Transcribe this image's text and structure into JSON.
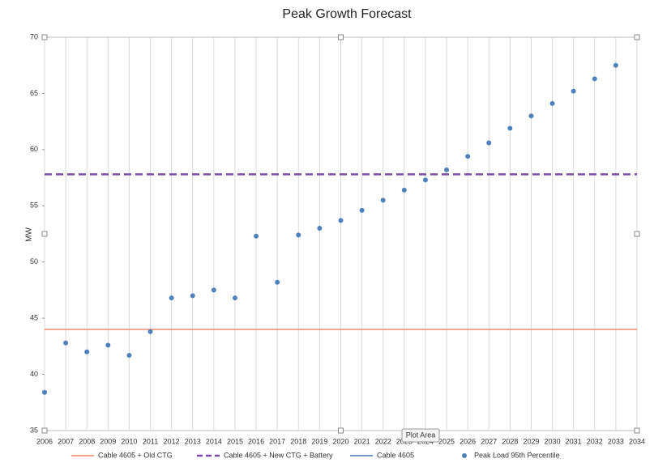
{
  "chart_data": {
    "type": "scatter",
    "title": "Peak Growth Forecast",
    "ylabel": "MW",
    "xlim": [
      2006,
      2034
    ],
    "xticks": [
      2006,
      2007,
      2008,
      2009,
      2010,
      2011,
      2012,
      2013,
      2014,
      2015,
      2016,
      2017,
      2018,
      2019,
      2020,
      2021,
      2022,
      2023,
      2024,
      2025,
      2026,
      2027,
      2028,
      2029,
      2030,
      2031,
      2032,
      2033,
      2034
    ],
    "ylim": [
      35,
      70
    ],
    "yticks": [
      35,
      40,
      45,
      50,
      55,
      60,
      65,
      70
    ],
    "grid": true,
    "legend": "bottom",
    "tooltip": "Plot Area",
    "series": [
      {
        "name": "Cable 4605 + Old CTG",
        "type": "line",
        "color": "#f4876b",
        "dash": false,
        "x": [
          2006,
          2034
        ],
        "values": [
          44.0,
          44.0
        ]
      },
      {
        "name": "Cable 4605 + New CTG + Battery",
        "type": "line",
        "color": "#7a4fa3",
        "dash": true,
        "x": [
          2006,
          2034
        ],
        "values": [
          57.8,
          57.8
        ]
      },
      {
        "name": "Cable 4605",
        "type": "line",
        "color": "#4a75b5",
        "dash": false,
        "x": [
          2006,
          2034
        ],
        "values": [
          null,
          null
        ]
      },
      {
        "name": "Peak Load 95th Percentile",
        "type": "scatter",
        "color": "#4f81bd",
        "x": [
          2006,
          2007,
          2008,
          2009,
          2010,
          2011,
          2012,
          2013,
          2014,
          2015,
          2016,
          2017,
          2018,
          2019,
          2020,
          2021,
          2022,
          2023,
          2024,
          2025,
          2026,
          2027,
          2028,
          2029,
          2030,
          2031,
          2032,
          2033
        ],
        "values": [
          38.4,
          42.8,
          42.0,
          42.6,
          41.7,
          43.8,
          46.8,
          47.0,
          47.5,
          46.8,
          52.3,
          48.2,
          52.4,
          53.0,
          53.7,
          54.6,
          55.5,
          56.4,
          57.3,
          58.2,
          59.4,
          60.6,
          61.9,
          63.0,
          64.1,
          65.2,
          66.3,
          67.5
        ]
      }
    ]
  }
}
